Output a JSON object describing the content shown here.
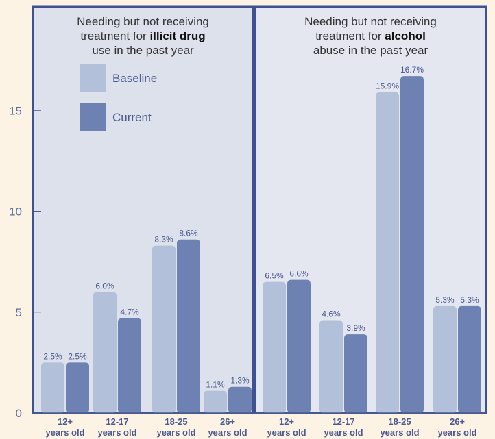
{
  "chart_data": {
    "type": "bar",
    "ylim": [
      0,
      18
    ],
    "yticks": [
      "0",
      "5",
      "10",
      "15"
    ],
    "legend": {
      "placement": "top-left",
      "entries": [
        {
          "name": "Baseline",
          "color": "#b3c0da"
        },
        {
          "name": "Current",
          "color": "#6d81b3"
        }
      ]
    },
    "panels": [
      {
        "title_lines": [
          [
            "Needing but not receiving"
          ],
          [
            "treatment for ",
            "illicit drug"
          ],
          [
            "use in the past year"
          ]
        ],
        "categories": [
          [
            "12+",
            "years old"
          ],
          [
            "12-17",
            "years old"
          ],
          [
            "18-25",
            "years old"
          ],
          [
            "26+",
            "years old"
          ]
        ],
        "series": [
          {
            "name": "Baseline",
            "values": [
              2.5,
              6.0,
              8.3,
              1.1
            ],
            "labels": [
              "2.5%",
              "6.0%",
              "8.3%",
              "1.1%"
            ]
          },
          {
            "name": "Current",
            "values": [
              2.5,
              4.7,
              8.6,
              1.3
            ],
            "labels": [
              "2.5%",
              "4.7%",
              "8.6%",
              "1.3%"
            ]
          }
        ]
      },
      {
        "title_lines": [
          [
            "Needing but not receiving"
          ],
          [
            "treatment for ",
            "alcohol"
          ],
          [
            "abuse in the past year"
          ]
        ],
        "categories": [
          [
            "12+",
            "years old"
          ],
          [
            "12-17",
            "years old"
          ],
          [
            "18-25",
            "years old"
          ],
          [
            "26+",
            "years old"
          ]
        ],
        "series": [
          {
            "name": "Baseline",
            "values": [
              6.5,
              4.6,
              15.9,
              5.3
            ],
            "labels": [
              "6.5%",
              "4.6%",
              "15.9%",
              "5.3%"
            ]
          },
          {
            "name": "Current",
            "values": [
              6.6,
              3.9,
              16.7,
              5.3
            ],
            "labels": [
              "6.6%",
              "3.9%",
              "16.7%",
              "5.3%"
            ]
          }
        ]
      }
    ],
    "colors": {
      "panel_left_bg": "#dde1ec",
      "panel_right_bg": "#e4e7f0",
      "frame": "#3d5193",
      "axis": "#4a5a8f"
    }
  }
}
